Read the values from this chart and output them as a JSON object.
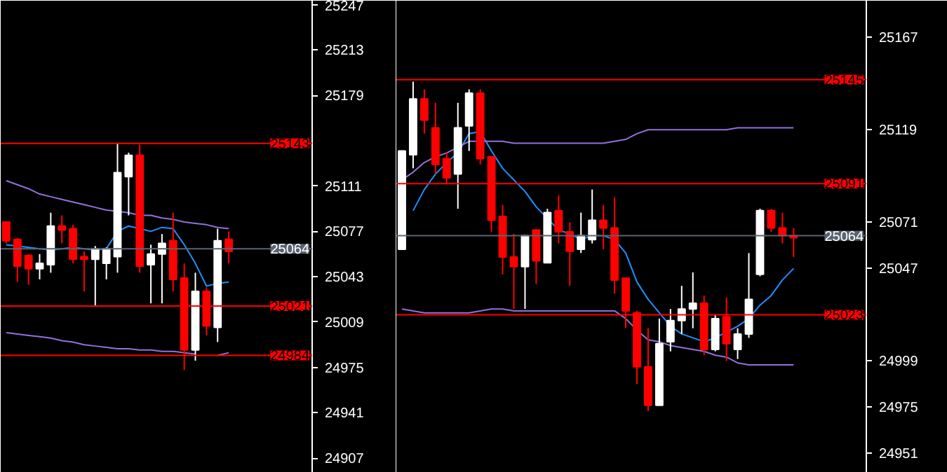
{
  "chart_data": [
    {
      "type": "candlestick",
      "categories": [
        null,
        null,
        null,
        null,
        null,
        null,
        null,
        null,
        null,
        null,
        null,
        null,
        null,
        null,
        null,
        null,
        null,
        null,
        null,
        null,
        null,
        null,
        null,
        null,
        null,
        null,
        null,
        null
      ],
      "ohlc": [
        [
          25084,
          25084,
          25068,
          25070
        ],
        [
          25071,
          25072,
          25039,
          25051
        ],
        [
          25059,
          25060,
          25037,
          25049
        ],
        [
          25049,
          25060,
          25041,
          25053
        ],
        [
          25052,
          25091,
          25046,
          25081
        ],
        [
          25081,
          25089,
          25068,
          25078
        ],
        [
          25079,
          25082,
          25053,
          25056
        ],
        [
          25058,
          25062,
          25032,
          25056
        ],
        [
          25056,
          25066,
          25021,
          25064
        ],
        [
          25053,
          25065,
          25041,
          25064
        ],
        [
          25058,
          25143,
          25046,
          25121
        ],
        [
          25118,
          25136,
          25089,
          25134
        ],
        [
          25134,
          25142,
          25046,
          25051
        ],
        [
          25052,
          25067,
          25023,
          25060
        ],
        [
          25060,
          25075,
          25023,
          25068
        ],
        [
          25070,
          25091,
          25032,
          25041
        ],
        [
          25042,
          25053,
          24973,
          24988
        ],
        [
          24988,
          25046,
          24980,
          25032
        ],
        [
          25032,
          25035,
          24999,
          25006
        ],
        [
          25005,
          25079,
          24994,
          25070
        ],
        [
          25071,
          25077,
          25053,
          25062
        ],
        null,
        null,
        null,
        null,
        null,
        null,
        null
      ],
      "colors": [
        "#ff0000",
        "#ff0000",
        "#ff0000",
        "#ffffff",
        "#ffffff",
        "#ff0000",
        "#ff0000",
        "#ff0000",
        "#ffffff",
        "#ffffff",
        "#ffffff",
        "#ffffff",
        "#ff0000",
        "#ffffff",
        "#ffffff",
        "#ff0000",
        "#ff0000",
        "#ffffff",
        "#ff0000",
        "#ffffff",
        "#ff0000",
        null,
        null,
        null,
        null,
        null,
        null,
        null
      ],
      "series": [
        {
          "type": "line",
          "color": "#1e90ff",
          "values": [
            25067,
            25066,
            25065,
            25064,
            25063,
            25064,
            25065,
            25064,
            25063,
            25064,
            25077,
            25081,
            25079,
            25077,
            25080,
            25079,
            25067,
            25053,
            25036,
            25038,
            25039,
            null,
            null,
            null,
            null,
            null,
            null,
            null
          ]
        },
        {
          "type": "line",
          "color": "#9370db",
          "values": [
            25115,
            25112,
            25109,
            25105,
            25103,
            25101,
            25099,
            25097,
            25095,
            25093,
            25092,
            25091,
            25089,
            25089,
            25087,
            25086,
            25084,
            25083,
            25082,
            25080,
            25079,
            null,
            null,
            null,
            null,
            null,
            null,
            null
          ]
        },
        {
          "type": "line",
          "color": "#9370db",
          "values": [
            25001,
            25000,
            24999,
            24998,
            24997,
            24995,
            24994,
            24992,
            24991,
            24990,
            24989,
            24989,
            24988,
            24988,
            24987,
            24987,
            24986,
            24985,
            null,
            24984,
            24986,
            null,
            null,
            null,
            null,
            null,
            null,
            null
          ]
        }
      ],
      "ylim": [
        24896,
        25250
      ],
      "yticks": [
        25247,
        25213,
        25179,
        25111,
        25077,
        25043,
        25009,
        24975,
        24941,
        24907
      ],
      "ref_lines": [
        {
          "axis": "y",
          "value": 25143,
          "label": "25143",
          "color": "#ff0000"
        },
        {
          "axis": "y",
          "value": 25064,
          "label": "25064",
          "color": "#5a6470"
        },
        {
          "axis": "y",
          "value": 25021,
          "label": "25021",
          "color": "#ff0000"
        },
        {
          "axis": "y",
          "value": 24984,
          "label": "24984",
          "color": "#ff0000"
        }
      ],
      "tick_labels": "y",
      "grid": false
    },
    {
      "type": "candlestick",
      "categories": [
        null,
        null,
        null,
        null,
        null,
        null,
        null,
        null,
        null,
        null,
        null,
        null,
        null,
        null,
        null,
        null,
        null,
        null,
        null,
        null,
        null,
        null,
        null,
        null,
        null,
        null,
        null,
        null,
        null,
        null,
        null,
        null,
        null,
        null,
        null,
        null,
        null,
        null,
        null,
        null,
        null,
        null
      ],
      "ohlc": [
        [
          25057,
          25108,
          25057,
          25108
        ],
        [
          25106,
          25144,
          25099,
          25135
        ],
        [
          25135,
          25140,
          25117,
          25124
        ],
        [
          25120,
          25133,
          25096,
          25101
        ],
        [
          25104,
          25107,
          25091,
          25094
        ],
        [
          25096,
          25133,
          25078,
          25120
        ],
        [
          25121,
          25140,
          25108,
          25138
        ],
        [
          25138,
          25140,
          25101,
          25104
        ],
        [
          25105,
          25105,
          25066,
          25072
        ],
        [
          25074,
          25080,
          25044,
          25053
        ],
        [
          25053,
          25065,
          25026,
          25048
        ],
        [
          25048,
          25064,
          25026,
          25064
        ],
        [
          25067,
          25067,
          25039,
          25051
        ],
        [
          25050,
          25078,
          25050,
          25076
        ],
        [
          25077,
          25085,
          25060,
          25066
        ],
        [
          25066,
          25071,
          25038,
          25056
        ],
        [
          25057,
          25076,
          25055,
          25064
        ],
        [
          25062,
          25088,
          25060,
          25072
        ],
        [
          25072,
          25080,
          25057,
          25068
        ],
        [
          25068,
          25084,
          25034,
          25041
        ],
        [
          25042,
          25042,
          25016,
          25025
        ],
        [
          25024,
          25025,
          24987,
          24996
        ],
        [
          24996,
          25016,
          24973,
          24976
        ],
        [
          24976,
          25021,
          24976,
          25008
        ],
        [
          25009,
          25026,
          25004,
          25020
        ],
        [
          25020,
          25038,
          25013,
          25026
        ],
        [
          25026,
          25045,
          25016,
          25029
        ],
        [
          25029,
          25033,
          25002,
          25005
        ],
        [
          25005,
          25023,
          25004,
          25021
        ],
        [
          25022,
          25032,
          24999,
          25008
        ],
        [
          25005,
          25016,
          25000,
          25013
        ],
        [
          25013,
          25055,
          25011,
          25031
        ],
        [
          25044,
          25078,
          25043,
          25077
        ],
        [
          25077,
          25078,
          25066,
          25068
        ],
        [
          25068,
          25076,
          25060,
          25064
        ],
        [
          25064,
          25068,
          25053,
          25063
        ],
        null,
        null,
        null,
        null,
        null,
        null
      ],
      "colors": [
        "#ffffff",
        "#ffffff",
        "#ff0000",
        "#ff0000",
        "#ff0000",
        "#ffffff",
        "#ffffff",
        "#ff0000",
        "#ff0000",
        "#ff0000",
        "#ff0000",
        "#ffffff",
        "#ff0000",
        "#ffffff",
        "#ff0000",
        "#ff0000",
        "#ffffff",
        "#ffffff",
        "#ff0000",
        "#ff0000",
        "#ff0000",
        "#ff0000",
        "#ff0000",
        "#ffffff",
        "#ffffff",
        "#ffffff",
        "#ffffff",
        "#ff0000",
        "#ffffff",
        "#ff0000",
        "#ffffff",
        "#ffffff",
        "#ffffff",
        "#ff0000",
        "#ff0000",
        "#ff0000",
        null,
        null,
        null,
        null,
        null,
        null
      ],
      "series": [
        {
          "type": "line",
          "color": "#1e90ff",
          "values": [
            null,
            25077,
            25088,
            25096,
            25102,
            25107,
            25117,
            25118,
            25108,
            25099,
            25093,
            25087,
            25079,
            25073,
            25067,
            25065,
            25062,
            25064,
            25064,
            25062,
            25055,
            25040,
            25031,
            25024,
            25017,
            25013,
            25011,
            25009,
            25011,
            25014,
            25017,
            25021,
            25028,
            25033,
            25041,
            25047,
            null,
            null,
            null,
            null,
            null,
            null
          ]
        },
        {
          "type": "line",
          "color": "#9370db",
          "values": [
            25093,
            25097,
            25102,
            25105,
            25107,
            25110,
            25113,
            25113,
            25113,
            25113,
            25112,
            25112,
            25112,
            25112,
            25112,
            25112,
            25112,
            25112,
            25112,
            25113,
            25114,
            25117,
            25119,
            25119,
            25119,
            25119,
            25119,
            25119,
            25119,
            25119,
            25120,
            25120,
            25120,
            25120,
            25120,
            25120,
            null,
            null,
            null,
            null,
            null,
            null
          ]
        },
        {
          "type": "line",
          "color": "#9370db",
          "values": [
            25026,
            25025,
            25024,
            25024,
            25024,
            25024,
            25024,
            25025,
            25026,
            25026,
            25025,
            25025,
            25025,
            25025,
            25025,
            25025,
            25025,
            25025,
            25025,
            25025,
            25021,
            25015,
            25010,
            25009,
            25007,
            25006,
            25005,
            25004,
            25002,
            25001,
            24998,
            24997,
            24997,
            24997,
            24997,
            24997,
            null,
            null,
            null,
            null,
            null,
            null
          ]
        }
      ],
      "ylim": [
        24941,
        25186
      ],
      "yticks": [
        25167,
        25119,
        25071,
        25047,
        24999,
        24975,
        24951
      ],
      "ref_lines": [
        {
          "axis": "y",
          "value": 25145,
          "label": "25145",
          "color": "#ff0000"
        },
        {
          "axis": "y",
          "value": 25091,
          "label": "25091",
          "color": "#ff0000"
        },
        {
          "axis": "y",
          "value": 25064,
          "label": "25064",
          "color": "#5a6470"
        },
        {
          "axis": "y",
          "value": 25023,
          "label": "25023",
          "color": "#ff0000"
        }
      ],
      "tick_labels": "y",
      "grid": false
    }
  ]
}
